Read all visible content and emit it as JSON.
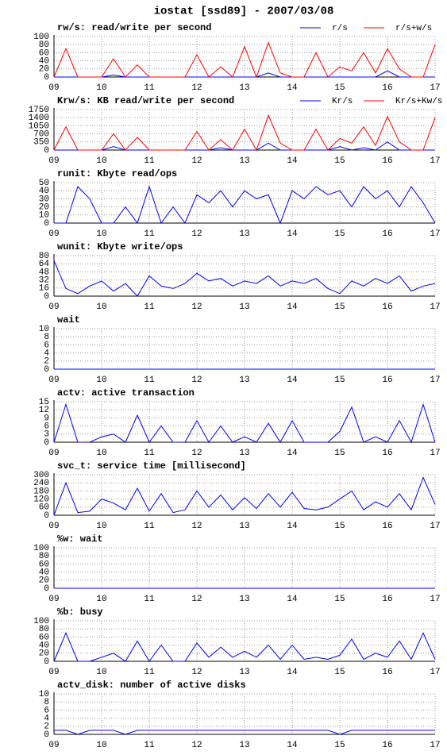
{
  "title": "iostat [ssd89] - 2007/03/08",
  "chart_data": [
    {
      "type": "line",
      "title": "rw/s: read/write per second",
      "x": [
        9,
        9.25,
        9.5,
        9.75,
        10,
        10.25,
        10.5,
        10.75,
        11,
        11.25,
        11.5,
        11.75,
        12,
        12.25,
        12.5,
        12.75,
        13,
        13.25,
        13.5,
        13.75,
        14,
        14.25,
        14.5,
        14.75,
        15,
        15.25,
        15.5,
        15.75,
        16,
        16.25,
        16.5,
        16.75,
        17
      ],
      "series": [
        {
          "name": "r/s",
          "color": "#0000ff",
          "values": [
            0,
            0,
            0,
            0,
            0,
            5,
            0,
            0,
            0,
            0,
            0,
            0,
            0,
            0,
            0,
            0,
            0,
            0,
            10,
            0,
            0,
            0,
            0,
            0,
            0,
            0,
            0,
            0,
            15,
            0,
            0,
            0,
            0
          ]
        },
        {
          "name": "r/s+w/s",
          "color": "#ff0000",
          "values": [
            0,
            70,
            0,
            0,
            0,
            45,
            0,
            30,
            0,
            0,
            0,
            0,
            55,
            0,
            25,
            0,
            75,
            0,
            85,
            10,
            0,
            0,
            60,
            0,
            25,
            15,
            60,
            10,
            70,
            20,
            0,
            0,
            80
          ]
        }
      ],
      "xlim": [
        9,
        17
      ],
      "xticks": [
        {
          "value": 9,
          "label": "09"
        },
        10,
        11,
        12,
        13,
        14,
        15,
        16,
        17
      ],
      "ylim": [
        0,
        100
      ],
      "yticks": [
        0,
        20,
        40,
        60,
        80,
        100
      ],
      "grid": true
    },
    {
      "type": "line",
      "title": "Krw/s: KB read/write per second",
      "x": [
        9,
        9.25,
        9.5,
        9.75,
        10,
        10.25,
        10.5,
        10.75,
        11,
        11.25,
        11.5,
        11.75,
        12,
        12.25,
        12.5,
        12.75,
        13,
        13.25,
        13.5,
        13.75,
        14,
        14.25,
        14.5,
        14.75,
        15,
        15.25,
        15.5,
        15.75,
        16,
        16.25,
        16.5,
        16.75,
        17
      ],
      "series": [
        {
          "name": "Kr/s",
          "color": "#0000ff",
          "values": [
            0,
            0,
            0,
            0,
            0,
            150,
            0,
            0,
            0,
            0,
            0,
            0,
            0,
            0,
            100,
            0,
            0,
            0,
            300,
            0,
            0,
            0,
            0,
            0,
            150,
            0,
            100,
            0,
            350,
            0,
            0,
            0,
            0
          ]
        },
        {
          "name": "Kr/s+Kw/s",
          "color": "#ff0000",
          "values": [
            0,
            1000,
            0,
            0,
            0,
            700,
            0,
            550,
            0,
            0,
            0,
            0,
            800,
            0,
            450,
            0,
            900,
            0,
            1500,
            300,
            0,
            0,
            900,
            0,
            500,
            300,
            1000,
            200,
            1450,
            350,
            0,
            0,
            1400
          ]
        }
      ],
      "xlim": [
        9,
        17
      ],
      "xticks": [
        {
          "value": 9,
          "label": "09"
        },
        10,
        11,
        12,
        13,
        14,
        15,
        16,
        17
      ],
      "ylim": [
        0,
        1750
      ],
      "yticks": [
        0,
        350,
        700,
        1050,
        1400,
        1750
      ],
      "grid": true
    },
    {
      "type": "line",
      "title": "runit: Kbyte read/ops",
      "x": [
        9,
        9.25,
        9.5,
        9.75,
        10,
        10.25,
        10.5,
        10.75,
        11,
        11.25,
        11.5,
        11.75,
        12,
        12.25,
        12.5,
        12.75,
        13,
        13.25,
        13.5,
        13.75,
        14,
        14.25,
        14.5,
        14.75,
        15,
        15.25,
        15.5,
        15.75,
        16,
        16.25,
        16.5,
        16.75,
        17
      ],
      "series": [
        {
          "color": "#0000ff",
          "values": [
            0,
            0,
            45,
            30,
            0,
            0,
            20,
            0,
            45,
            0,
            20,
            0,
            35,
            25,
            40,
            20,
            40,
            30,
            35,
            0,
            40,
            30,
            45,
            35,
            40,
            20,
            45,
            30,
            40,
            20,
            45,
            25,
            0
          ]
        }
      ],
      "xlim": [
        9,
        17
      ],
      "xticks": [
        {
          "value": 9,
          "label": "09"
        },
        10,
        11,
        12,
        13,
        14,
        15,
        16,
        17
      ],
      "ylim": [
        0,
        50
      ],
      "yticks": [
        0,
        10,
        20,
        30,
        40,
        50
      ],
      "grid": true
    },
    {
      "type": "line",
      "title": "wunit: Kbyte write/ops",
      "x": [
        9,
        9.25,
        9.5,
        9.75,
        10,
        10.25,
        10.5,
        10.75,
        11,
        11.25,
        11.5,
        11.75,
        12,
        12.25,
        12.5,
        12.75,
        13,
        13.25,
        13.5,
        13.75,
        14,
        14.25,
        14.5,
        14.75,
        15,
        15.25,
        15.5,
        15.75,
        16,
        16.25,
        16.5,
        16.75,
        17
      ],
      "series": [
        {
          "color": "#0000ff",
          "values": [
            70,
            15,
            5,
            20,
            30,
            10,
            25,
            0,
            40,
            20,
            15,
            25,
            45,
            30,
            35,
            20,
            30,
            25,
            40,
            20,
            30,
            25,
            35,
            15,
            5,
            30,
            20,
            35,
            25,
            40,
            10,
            20,
            25
          ]
        }
      ],
      "xlim": [
        9,
        17
      ],
      "xticks": [
        {
          "value": 9,
          "label": "09"
        },
        10,
        11,
        12,
        13,
        14,
        15,
        16,
        17
      ],
      "ylim": [
        0,
        80
      ],
      "yticks": [
        0,
        16,
        32,
        48,
        64,
        80
      ],
      "grid": true
    },
    {
      "type": "line",
      "title": "wait",
      "x": [
        9,
        9.25,
        9.5,
        9.75,
        10,
        10.25,
        10.5,
        10.75,
        11,
        11.25,
        11.5,
        11.75,
        12,
        12.25,
        12.5,
        12.75,
        13,
        13.25,
        13.5,
        13.75,
        14,
        14.25,
        14.5,
        14.75,
        15,
        15.25,
        15.5,
        15.75,
        16,
        16.25,
        16.5,
        16.75,
        17
      ],
      "series": [
        {
          "color": "#0000ff",
          "values": [
            0,
            0,
            0,
            0,
            0,
            0,
            0,
            0,
            0,
            0,
            0,
            0,
            0,
            0,
            0,
            0,
            0,
            0,
            0,
            0,
            0,
            0,
            0,
            0,
            0,
            0,
            0,
            0,
            0,
            0,
            0,
            0,
            0
          ]
        }
      ],
      "xlim": [
        9,
        17
      ],
      "xticks": [
        {
          "value": 9,
          "label": "09"
        },
        10,
        11,
        12,
        13,
        14,
        15,
        16,
        17
      ],
      "ylim": [
        0,
        10
      ],
      "yticks": [
        0,
        2,
        4,
        6,
        8,
        10
      ],
      "grid": true
    },
    {
      "type": "line",
      "title": "actv: active transaction",
      "x": [
        9,
        9.25,
        9.5,
        9.75,
        10,
        10.25,
        10.5,
        10.75,
        11,
        11.25,
        11.5,
        11.75,
        12,
        12.25,
        12.5,
        12.75,
        13,
        13.25,
        13.5,
        13.75,
        14,
        14.25,
        14.5,
        14.75,
        15,
        15.25,
        15.5,
        15.75,
        16,
        16.25,
        16.5,
        16.75,
        17
      ],
      "series": [
        {
          "color": "#0000ff",
          "values": [
            0,
            14,
            0,
            0,
            2,
            3,
            0,
            10,
            0,
            6,
            0,
            0,
            8,
            0,
            6,
            0,
            2,
            0,
            7,
            0,
            8,
            0,
            0,
            0,
            4,
            13,
            0,
            2,
            0,
            8,
            0,
            14,
            0
          ]
        }
      ],
      "xlim": [
        9,
        17
      ],
      "xticks": [
        {
          "value": 9,
          "label": "09"
        },
        10,
        11,
        12,
        13,
        14,
        15,
        16,
        17
      ],
      "ylim": [
        0,
        15
      ],
      "yticks": [
        0,
        3,
        6,
        9,
        12,
        15
      ],
      "grid": true
    },
    {
      "type": "line",
      "title": "svc_t: service time [millisecond]",
      "x": [
        9,
        9.25,
        9.5,
        9.75,
        10,
        10.25,
        10.5,
        10.75,
        11,
        11.25,
        11.5,
        11.75,
        12,
        12.25,
        12.5,
        12.75,
        13,
        13.25,
        13.5,
        13.75,
        14,
        14.25,
        14.5,
        14.75,
        15,
        15.25,
        15.5,
        15.75,
        16,
        16.25,
        16.5,
        16.75,
        17
      ],
      "series": [
        {
          "color": "#0000ff",
          "values": [
            0,
            240,
            20,
            30,
            120,
            90,
            40,
            200,
            30,
            160,
            20,
            40,
            180,
            60,
            150,
            40,
            130,
            50,
            160,
            60,
            170,
            50,
            40,
            60,
            120,
            180,
            40,
            100,
            60,
            160,
            40,
            280,
            80
          ]
        }
      ],
      "xlim": [
        9,
        17
      ],
      "xticks": [
        {
          "value": 9,
          "label": "09"
        },
        10,
        11,
        12,
        13,
        14,
        15,
        16,
        17
      ],
      "ylim": [
        0,
        300
      ],
      "yticks": [
        0,
        60,
        120,
        180,
        240,
        300
      ],
      "grid": true
    },
    {
      "type": "line",
      "title": "%w: wait",
      "x": [
        9,
        9.25,
        9.5,
        9.75,
        10,
        10.25,
        10.5,
        10.75,
        11,
        11.25,
        11.5,
        11.75,
        12,
        12.25,
        12.5,
        12.75,
        13,
        13.25,
        13.5,
        13.75,
        14,
        14.25,
        14.5,
        14.75,
        15,
        15.25,
        15.5,
        15.75,
        16,
        16.25,
        16.5,
        16.75,
        17
      ],
      "series": [
        {
          "color": "#0000ff",
          "values": [
            0,
            0,
            0,
            0,
            0,
            0,
            0,
            0,
            0,
            0,
            0,
            0,
            0,
            0,
            0,
            0,
            0,
            0,
            0,
            0,
            0,
            0,
            0,
            0,
            0,
            0,
            0,
            0,
            0,
            0,
            0,
            0,
            0
          ]
        }
      ],
      "xlim": [
        9,
        17
      ],
      "xticks": [
        {
          "value": 9,
          "label": "09"
        },
        10,
        11,
        12,
        13,
        14,
        15,
        16,
        17
      ],
      "ylim": [
        0,
        100
      ],
      "yticks": [
        0,
        20,
        40,
        60,
        80,
        100
      ],
      "grid": true
    },
    {
      "type": "line",
      "title": "%b: busy",
      "x": [
        9,
        9.25,
        9.5,
        9.75,
        10,
        10.25,
        10.5,
        10.75,
        11,
        11.25,
        11.5,
        11.75,
        12,
        12.25,
        12.5,
        12.75,
        13,
        13.25,
        13.5,
        13.75,
        14,
        14.25,
        14.5,
        14.75,
        15,
        15.25,
        15.5,
        15.75,
        16,
        16.25,
        16.5,
        16.75,
        17
      ],
      "series": [
        {
          "color": "#0000ff",
          "values": [
            0,
            70,
            0,
            0,
            10,
            20,
            0,
            50,
            0,
            40,
            0,
            0,
            45,
            10,
            35,
            10,
            25,
            10,
            40,
            5,
            40,
            5,
            10,
            5,
            15,
            55,
            5,
            20,
            10,
            50,
            5,
            70,
            5
          ]
        }
      ],
      "xlim": [
        9,
        17
      ],
      "xticks": [
        {
          "value": 9,
          "label": "09"
        },
        10,
        11,
        12,
        13,
        14,
        15,
        16,
        17
      ],
      "ylim": [
        0,
        100
      ],
      "yticks": [
        0,
        20,
        40,
        60,
        80,
        100
      ],
      "grid": true
    },
    {
      "type": "line",
      "title": "actv_disk: number of active disks",
      "x": [
        9,
        9.25,
        9.5,
        9.75,
        10,
        10.25,
        10.5,
        10.75,
        11,
        11.25,
        11.5,
        11.75,
        12,
        12.25,
        12.5,
        12.75,
        13,
        13.25,
        13.5,
        13.75,
        14,
        14.25,
        14.5,
        14.75,
        15,
        15.25,
        15.5,
        15.75,
        16,
        16.25,
        16.5,
        16.75,
        17
      ],
      "series": [
        {
          "color": "#0000ff",
          "values": [
            1,
            1,
            0,
            1,
            1,
            1,
            0,
            1,
            1,
            1,
            1,
            1,
            1,
            1,
            1,
            1,
            1,
            1,
            1,
            1,
            1,
            1,
            1,
            1,
            0,
            1,
            1,
            1,
            1,
            1,
            1,
            1,
            1
          ]
        }
      ],
      "xlim": [
        9,
        17
      ],
      "xticks": [
        {
          "value": 9,
          "label": "09"
        },
        10,
        11,
        12,
        13,
        14,
        15,
        16,
        17
      ],
      "ylim": [
        0,
        10
      ],
      "yticks": [
        0,
        2,
        4,
        6,
        8,
        10
      ],
      "grid": true
    }
  ]
}
